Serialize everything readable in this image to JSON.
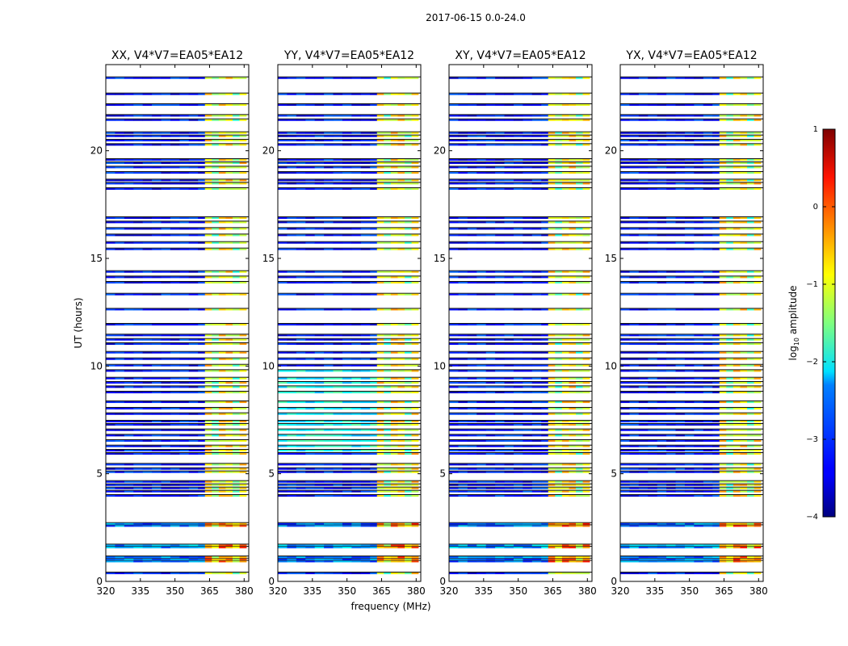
{
  "figure_title": "2017-06-15 0.0-24.0",
  "colorbar": {
    "label_main": "log",
    "label_sub": "10",
    "label_rest": " amplitude",
    "range": [
      -4,
      1
    ],
    "ticks": [
      "1",
      "0",
      "−1",
      "−2",
      "−3",
      "−4"
    ],
    "colormap": "jet"
  },
  "chart_data": [
    {
      "type": "heatmap",
      "title": "XX, V4*V7=EA05*EA12",
      "xlabel": "",
      "ylabel": "UT (hours)",
      "xlim": [
        320,
        382
      ],
      "ylim": [
        0,
        24
      ],
      "xticks": [
        "320",
        "335",
        "350",
        "365",
        "380"
      ],
      "yticks": [
        "0",
        "5",
        "10",
        "15",
        "20"
      ]
    },
    {
      "type": "heatmap",
      "title": "YY, V4*V7=EA05*EA12",
      "xlabel": "frequency (MHz)",
      "ylabel": "",
      "xlim": [
        320,
        382
      ],
      "ylim": [
        0,
        24
      ],
      "xticks": [
        "320",
        "335",
        "350",
        "365",
        "380"
      ],
      "yticks": [
        "0",
        "5",
        "10",
        "15",
        "20"
      ]
    },
    {
      "type": "heatmap",
      "title": "XY, V4*V7=EA05*EA12",
      "xlabel": "",
      "ylabel": "",
      "xlim": [
        320,
        382
      ],
      "ylim": [
        0,
        24
      ],
      "xticks": [
        "320",
        "335",
        "350",
        "365",
        "380"
      ],
      "yticks": [
        "0",
        "5",
        "10",
        "15",
        "20"
      ]
    },
    {
      "type": "heatmap",
      "title": "YX, V4*V7=EA05*EA12",
      "xlabel": "",
      "ylabel": "",
      "xlim": [
        320,
        382
      ],
      "ylim": [
        0,
        24
      ],
      "xticks": [
        "320",
        "335",
        "350",
        "365",
        "380"
      ],
      "yticks": [
        "0",
        "5",
        "10",
        "15",
        "20"
      ]
    }
  ]
}
